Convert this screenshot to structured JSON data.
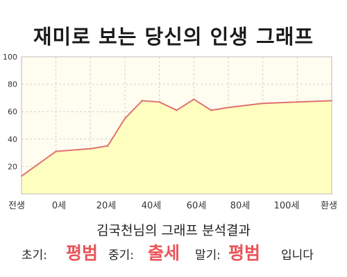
{
  "title": "재미로 보는 당신의 인생 그래프",
  "chart_data": {
    "type": "area",
    "categories": [
      "전생",
      "0세",
      "20세",
      "40세",
      "60세",
      "80세",
      "100세",
      "환생"
    ],
    "x": [
      -10,
      0,
      10,
      15,
      20,
      25,
      30,
      35,
      40,
      45,
      50,
      60,
      70,
      80
    ],
    "values": [
      13,
      31,
      33,
      35,
      55,
      68,
      67,
      61,
      69,
      61,
      63,
      66,
      67,
      68
    ],
    "y_ticks": [
      20,
      40,
      60,
      80,
      100
    ],
    "ylim": [
      0,
      100
    ],
    "xlim": [
      -10,
      80
    ],
    "grid": true,
    "colors": {
      "line": "#e07070",
      "fill": "#ffffbf",
      "plot_bg": "#fffdf0",
      "grid": "#cfcfcf"
    }
  },
  "result": {
    "title": "김국천님의 그래프 분석결과",
    "early_label": "초기:",
    "early_value": "평범",
    "mid_label": "중기:",
    "mid_value": "출세",
    "late_label": "말기:",
    "late_value": "평범",
    "suffix": "입니다"
  }
}
